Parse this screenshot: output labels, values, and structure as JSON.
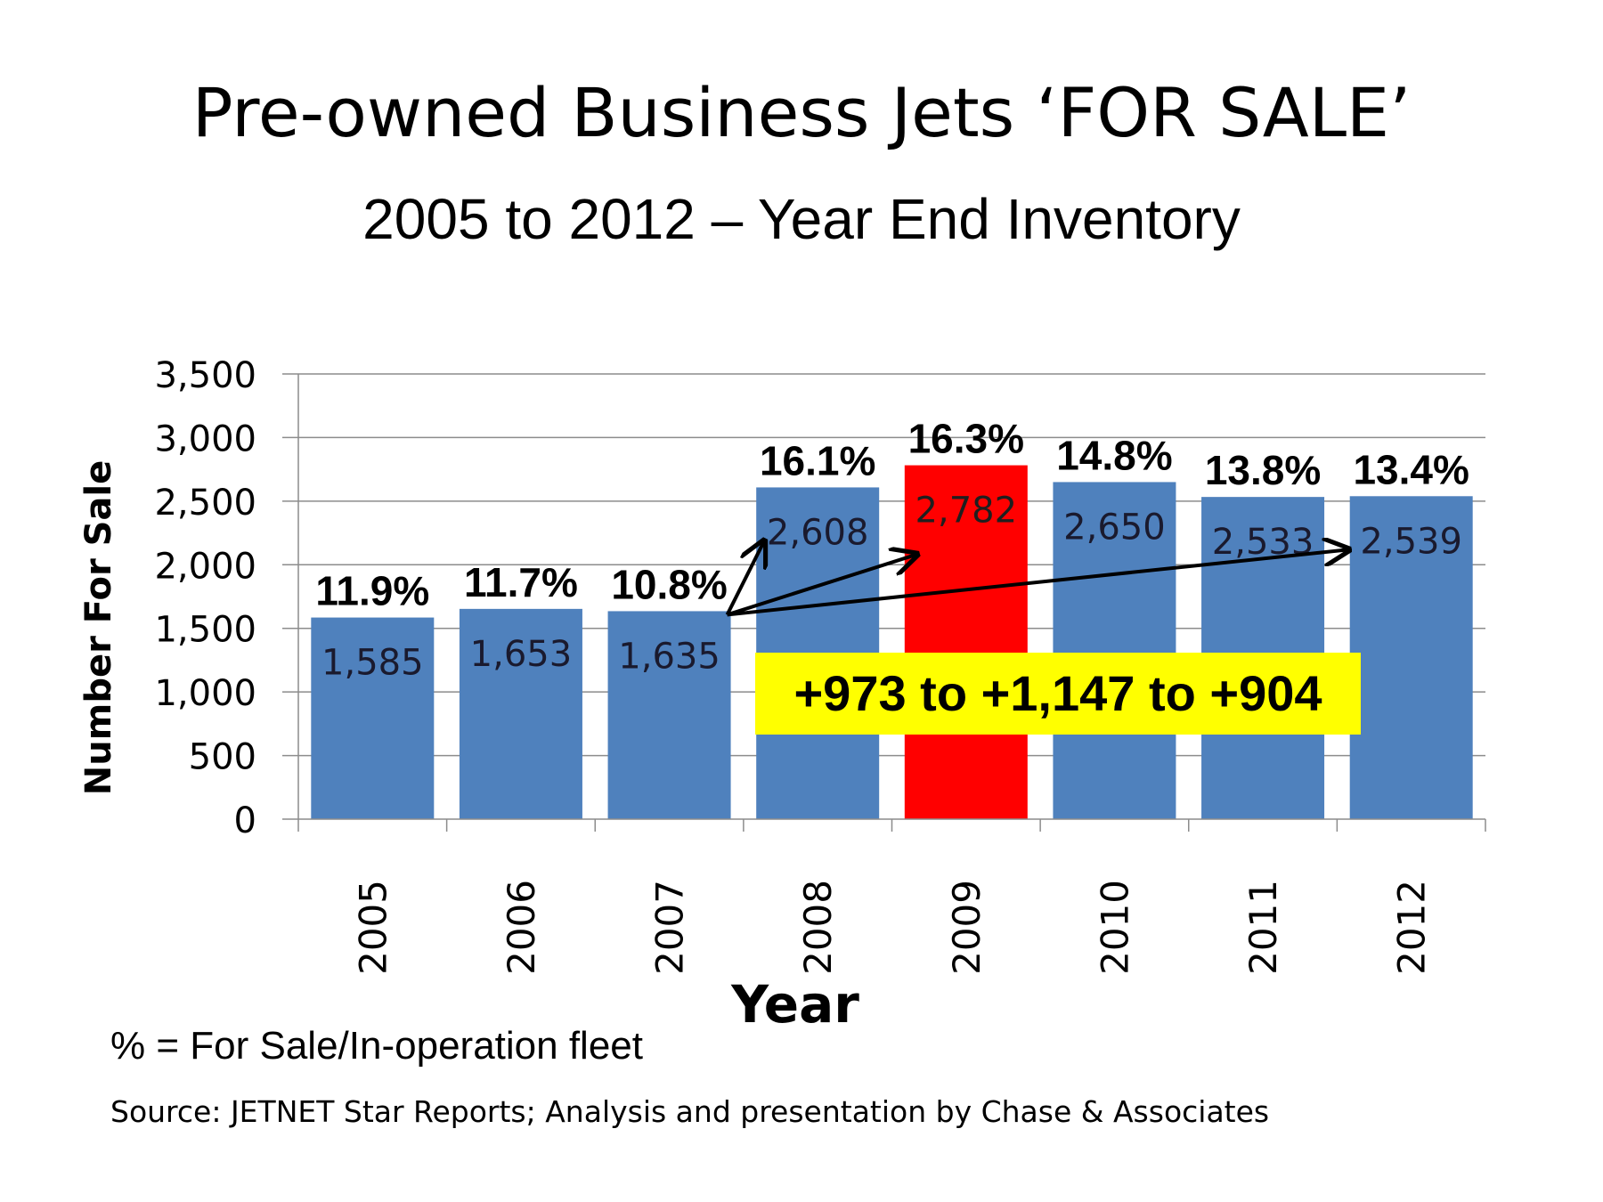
{
  "slide": {
    "title": "Pre-owned Business Jets ‘FOR SALE’",
    "subtitle": "2005 to 2012 – Year End Inventory",
    "footnote": "% = For Sale/In-operation fleet",
    "source": "Source: JETNET Star Reports; Analysis and presentation by Chase & Associates"
  },
  "chart_data": {
    "type": "bar",
    "title": "Pre-owned Business Jets ‘FOR SALE’",
    "subtitle": "2005 to 2012 – Year End Inventory",
    "xlabel": "Year",
    "ylabel": "Number  For Sale",
    "ylim": [
      0,
      3500
    ],
    "ytick_step": 500,
    "grid": true,
    "categories": [
      "2005",
      "2006",
      "2007",
      "2008",
      "2009",
      "2010",
      "2011",
      "2012"
    ],
    "values": [
      1585,
      1653,
      1635,
      2608,
      2782,
      2650,
      2533,
      2539
    ],
    "value_labels": [
      "1,585",
      "1,653",
      "1,635",
      "2,608",
      "2,782",
      "2,650",
      "2,533",
      "2,539"
    ],
    "percent_labels": [
      "11.9%",
      "11.7%",
      "10.8%",
      "16.1%",
      "16.3%",
      "14.8%",
      "13.8%",
      "13.4%"
    ],
    "bar_color": "#4F81BD",
    "highlight_color": "#FF0000",
    "highlight_category": "2009",
    "annotation": {
      "text": "+973 to +1,147 to +904",
      "background": "#FFFF00",
      "arrows_from": "2007",
      "arrows_to": [
        "2008",
        "2009",
        "2012"
      ]
    }
  }
}
